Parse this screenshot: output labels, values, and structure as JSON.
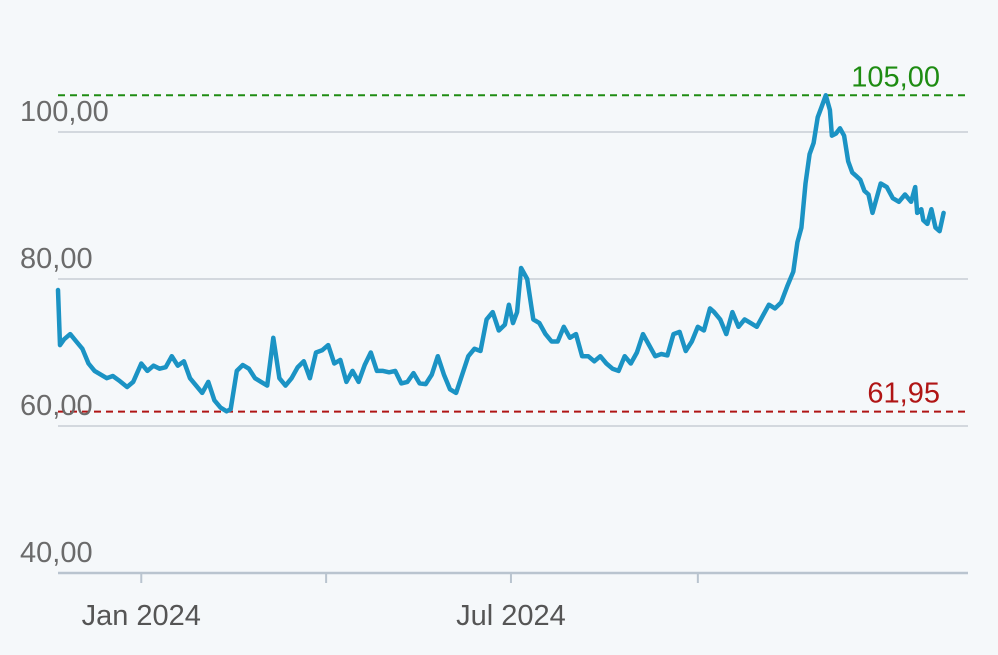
{
  "colors": {
    "background": "#f5f8fa",
    "line": "#1b93c4",
    "grid": "#d3d8de",
    "axis": "#b9c4cf",
    "high": "#1e8c12",
    "low": "#b01515",
    "tick_text": "#6b6b6b"
  },
  "chart_data": {
    "type": "line",
    "title": "",
    "xlabel": "",
    "ylabel": "",
    "ylim": [
      40,
      107
    ],
    "y_ticks": [
      {
        "value": 40,
        "label": "40,00"
      },
      {
        "value": 60,
        "label": "60,00"
      },
      {
        "value": 80,
        "label": "80,00"
      },
      {
        "value": 100,
        "label": "100,00"
      }
    ],
    "x_range": [
      "2023-11-21",
      "2025-02-11"
    ],
    "x_ticks": [
      {
        "date": "2024-01-01",
        "label": "Jan 2024"
      },
      {
        "date": "2024-04-01",
        "label": ""
      },
      {
        "date": "2024-07-01",
        "label": "Jul 2024"
      },
      {
        "date": "2024-10-01",
        "label": ""
      }
    ],
    "reference_lines": [
      {
        "name": "high",
        "value": 105.0,
        "label": "105,00",
        "color": "#1e8c12",
        "style": "dashed"
      },
      {
        "name": "low",
        "value": 61.95,
        "label": "61,95",
        "color": "#b01515",
        "style": "dashed"
      }
    ],
    "grid": true,
    "series": [
      {
        "color": "#1b93c4",
        "points": [
          [
            "2023-11-21",
            78.5
          ],
          [
            "2023-11-22",
            71.0
          ],
          [
            "2023-11-24",
            71.8
          ],
          [
            "2023-11-27",
            72.5
          ],
          [
            "2023-11-30",
            71.5
          ],
          [
            "2023-12-03",
            70.5
          ],
          [
            "2023-12-06",
            68.5
          ],
          [
            "2023-12-09",
            67.5
          ],
          [
            "2023-12-12",
            67.0
          ],
          [
            "2023-12-15",
            66.5
          ],
          [
            "2023-12-18",
            66.8
          ],
          [
            "2023-12-21",
            66.2
          ],
          [
            "2023-12-25",
            65.3
          ],
          [
            "2023-12-28",
            66.0
          ],
          [
            "2024-01-01",
            68.5
          ],
          [
            "2024-01-04",
            67.5
          ],
          [
            "2024-01-07",
            68.2
          ],
          [
            "2024-01-10",
            67.8
          ],
          [
            "2024-01-13",
            68.0
          ],
          [
            "2024-01-16",
            69.5
          ],
          [
            "2024-01-19",
            68.2
          ],
          [
            "2024-01-22",
            68.8
          ],
          [
            "2024-01-25",
            66.5
          ],
          [
            "2024-01-28",
            65.5
          ],
          [
            "2024-01-31",
            64.5
          ],
          [
            "2024-02-03",
            66.0
          ],
          [
            "2024-02-06",
            63.5
          ],
          [
            "2024-02-09",
            62.5
          ],
          [
            "2024-02-12",
            62.0
          ],
          [
            "2024-02-14",
            62.3
          ],
          [
            "2024-02-17",
            67.5
          ],
          [
            "2024-02-20",
            68.3
          ],
          [
            "2024-02-23",
            67.8
          ],
          [
            "2024-02-26",
            66.5
          ],
          [
            "2024-02-29",
            66.0
          ],
          [
            "2024-03-03",
            65.5
          ],
          [
            "2024-03-06",
            72.0
          ],
          [
            "2024-03-09",
            66.5
          ],
          [
            "2024-03-12",
            65.5
          ],
          [
            "2024-03-15",
            66.5
          ],
          [
            "2024-03-18",
            68.0
          ],
          [
            "2024-03-21",
            68.8
          ],
          [
            "2024-03-24",
            66.5
          ],
          [
            "2024-03-27",
            70.0
          ],
          [
            "2024-03-30",
            70.3
          ],
          [
            "2024-04-02",
            71.0
          ],
          [
            "2024-04-05",
            68.5
          ],
          [
            "2024-04-08",
            69.0
          ],
          [
            "2024-04-11",
            66.0
          ],
          [
            "2024-04-14",
            67.5
          ],
          [
            "2024-04-17",
            66.0
          ],
          [
            "2024-04-20",
            68.3
          ],
          [
            "2024-04-23",
            70.0
          ],
          [
            "2024-04-26",
            67.5
          ],
          [
            "2024-04-29",
            67.5
          ],
          [
            "2024-05-02",
            67.3
          ],
          [
            "2024-05-05",
            67.5
          ],
          [
            "2024-05-08",
            65.8
          ],
          [
            "2024-05-11",
            66.0
          ],
          [
            "2024-05-14",
            67.2
          ],
          [
            "2024-05-17",
            65.8
          ],
          [
            "2024-05-20",
            65.7
          ],
          [
            "2024-05-23",
            67.0
          ],
          [
            "2024-05-26",
            69.5
          ],
          [
            "2024-05-29",
            67.0
          ],
          [
            "2024-06-01",
            65.0
          ],
          [
            "2024-06-04",
            64.5
          ],
          [
            "2024-06-07",
            67.0
          ],
          [
            "2024-06-10",
            69.5
          ],
          [
            "2024-06-13",
            70.5
          ],
          [
            "2024-06-16",
            70.2
          ],
          [
            "2024-06-19",
            74.5
          ],
          [
            "2024-06-22",
            75.5
          ],
          [
            "2024-06-25",
            73.0
          ],
          [
            "2024-06-28",
            73.8
          ],
          [
            "2024-06-30",
            76.5
          ],
          [
            "2024-07-02",
            74.0
          ],
          [
            "2024-07-04",
            75.5
          ],
          [
            "2024-07-06",
            81.5
          ],
          [
            "2024-07-09",
            80.0
          ],
          [
            "2024-07-12",
            74.5
          ],
          [
            "2024-07-15",
            74.0
          ],
          [
            "2024-07-18",
            72.5
          ],
          [
            "2024-07-21",
            71.5
          ],
          [
            "2024-07-24",
            71.5
          ],
          [
            "2024-07-27",
            73.5
          ],
          [
            "2024-07-30",
            72.0
          ],
          [
            "2024-08-02",
            72.5
          ],
          [
            "2024-08-05",
            69.5
          ],
          [
            "2024-08-08",
            69.5
          ],
          [
            "2024-08-11",
            68.8
          ],
          [
            "2024-08-14",
            69.5
          ],
          [
            "2024-08-17",
            68.5
          ],
          [
            "2024-08-20",
            67.8
          ],
          [
            "2024-08-23",
            67.5
          ],
          [
            "2024-08-26",
            69.5
          ],
          [
            "2024-08-29",
            68.5
          ],
          [
            "2024-09-01",
            70.0
          ],
          [
            "2024-09-04",
            72.5
          ],
          [
            "2024-09-07",
            71.0
          ],
          [
            "2024-09-10",
            69.5
          ],
          [
            "2024-09-13",
            69.8
          ],
          [
            "2024-09-16",
            69.6
          ],
          [
            "2024-09-19",
            72.5
          ],
          [
            "2024-09-22",
            72.8
          ],
          [
            "2024-09-25",
            70.2
          ],
          [
            "2024-09-28",
            71.5
          ],
          [
            "2024-10-01",
            73.5
          ],
          [
            "2024-10-04",
            73.0
          ],
          [
            "2024-10-07",
            76.0
          ],
          [
            "2024-10-09",
            75.5
          ],
          [
            "2024-10-12",
            74.5
          ],
          [
            "2024-10-15",
            72.5
          ],
          [
            "2024-10-18",
            75.5
          ],
          [
            "2024-10-21",
            73.5
          ],
          [
            "2024-10-24",
            74.5
          ],
          [
            "2024-10-27",
            74.0
          ],
          [
            "2024-10-30",
            73.5
          ],
          [
            "2024-11-02",
            75.0
          ],
          [
            "2024-11-05",
            76.5
          ],
          [
            "2024-11-08",
            76.0
          ],
          [
            "2024-11-11",
            76.8
          ],
          [
            "2024-11-14",
            79.0
          ],
          [
            "2024-11-17",
            81.0
          ],
          [
            "2024-11-19",
            85.0
          ],
          [
            "2024-11-21",
            87.0
          ],
          [
            "2024-11-23",
            93.0
          ],
          [
            "2024-11-25",
            97.0
          ],
          [
            "2024-11-27",
            98.5
          ],
          [
            "2024-11-29",
            102.0
          ],
          [
            "2024-12-01",
            103.5
          ],
          [
            "2024-12-03",
            105.0
          ],
          [
            "2024-12-05",
            103.0
          ],
          [
            "2024-12-06",
            99.5
          ],
          [
            "2024-12-08",
            99.8
          ],
          [
            "2024-12-10",
            100.5
          ],
          [
            "2024-12-12",
            99.5
          ],
          [
            "2024-12-14",
            96.0
          ],
          [
            "2024-12-16",
            94.5
          ],
          [
            "2024-12-18",
            94.0
          ],
          [
            "2024-12-20",
            93.5
          ],
          [
            "2024-12-22",
            92.0
          ],
          [
            "2024-12-24",
            91.5
          ],
          [
            "2024-12-26",
            89.0
          ],
          [
            "2024-12-28",
            91.0
          ],
          [
            "2024-12-30",
            93.0
          ],
          [
            "2025-01-02",
            92.5
          ],
          [
            "2025-01-05",
            91.0
          ],
          [
            "2025-01-08",
            90.5
          ],
          [
            "2025-01-11",
            91.5
          ],
          [
            "2025-01-14",
            90.5
          ],
          [
            "2025-01-16",
            92.5
          ],
          [
            "2025-01-17",
            89.0
          ],
          [
            "2025-01-19",
            89.5
          ],
          [
            "2025-01-20",
            88.0
          ],
          [
            "2025-01-22",
            87.5
          ],
          [
            "2025-01-24",
            89.5
          ],
          [
            "2025-01-26",
            87.0
          ],
          [
            "2025-01-28",
            86.5
          ],
          [
            "2025-01-30",
            89.0
          ]
        ]
      }
    ]
  }
}
